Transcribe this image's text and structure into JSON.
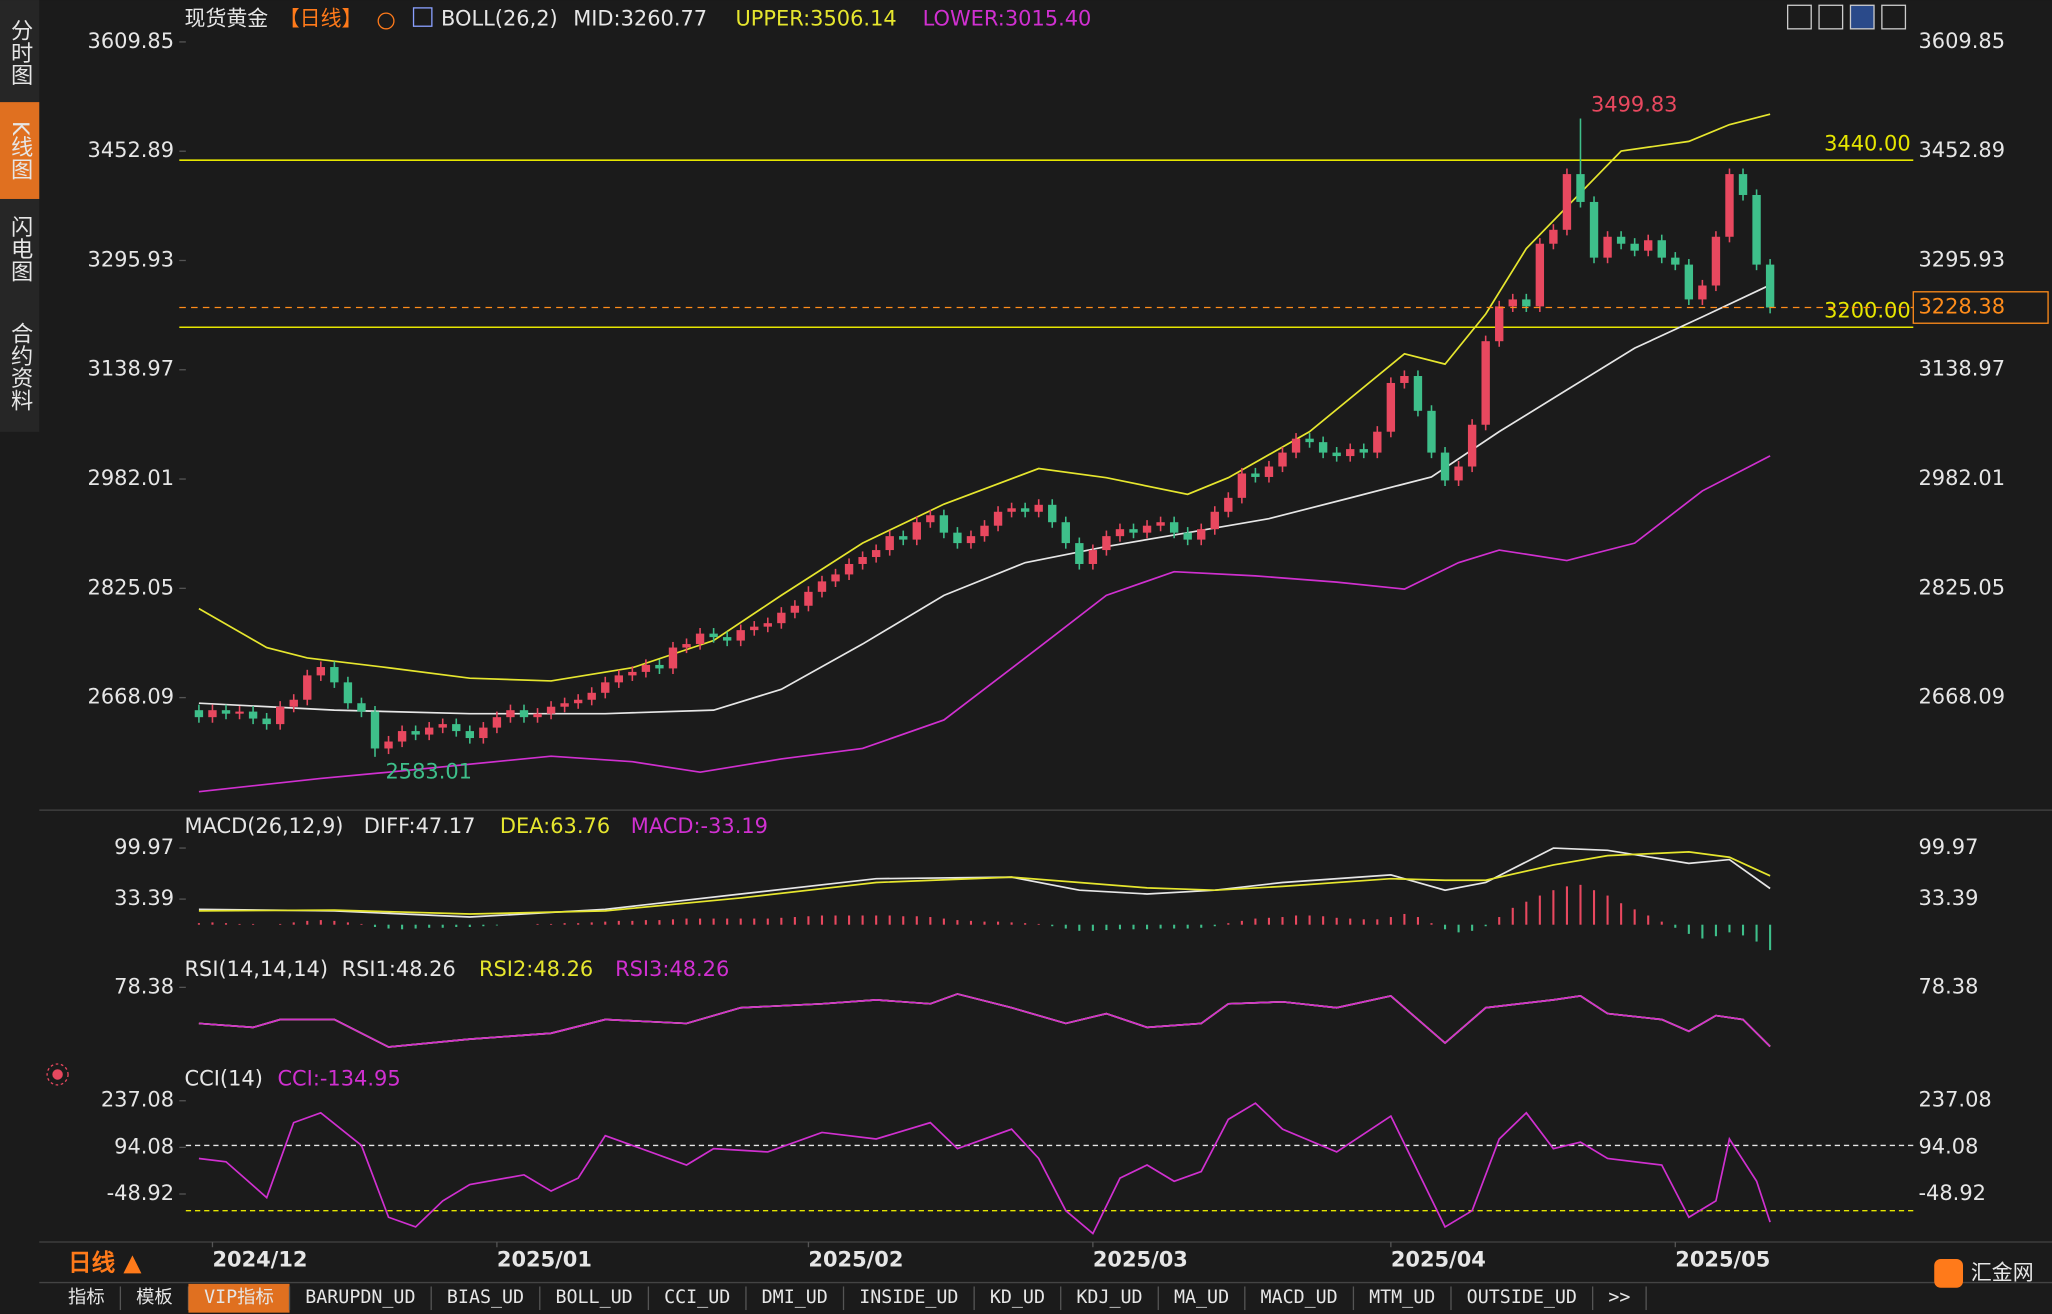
{
  "ui": {
    "sidebar": [
      "分时图",
      "K线图",
      "闪电图",
      "合约资料"
    ],
    "period_button": "日线 ▲",
    "logo": "汇金网",
    "tabs": [
      "指标",
      "模板",
      "VIP指标",
      "BARUPDN_UD",
      "BIAS_UD",
      "BOLL_UD",
      "CCI_UD",
      "DMI_UD",
      "INSIDE_UD",
      "KD_UD",
      "KDJ_UD",
      "MA_UD",
      "MACD_UD",
      "MTM_UD",
      "OUTSIDE_UD",
      ">>"
    ]
  },
  "chart_data": [
    {
      "type": "candlestick",
      "title": "现货黄金",
      "period": "【日线】",
      "indicator": "BOLL(26,2)",
      "up_color": "#e8485f",
      "down_color": "#3ebf8a",
      "open": [
        2650,
        2640,
        2650,
        2645,
        2648,
        2638,
        2630,
        2655,
        2665,
        2700,
        2712,
        2690,
        2660,
        2648,
        2595,
        2605,
        2620,
        2615,
        2625,
        2630,
        2620,
        2610,
        2625,
        2640,
        2650,
        2640,
        2645,
        2655,
        2660,
        2665,
        2675,
        2690,
        2700,
        2705,
        2715,
        2710,
        2740,
        2745,
        2760,
        2755,
        2750,
        2765,
        2770,
        2775,
        2790,
        2800,
        2820,
        2835,
        2845,
        2860,
        2870,
        2880,
        2900,
        2895,
        2920,
        2930,
        2905,
        2890,
        2900,
        2915,
        2935,
        2940,
        2935,
        2945,
        2920,
        2890,
        2860,
        2880,
        2900,
        2910,
        2905,
        2915,
        2920,
        2905,
        2895,
        2910,
        2935,
        2955,
        2990,
        2985,
        3000,
        3020,
        3040,
        3035,
        3020,
        3015,
        3025,
        3020,
        3050,
        3120,
        3130,
        3080,
        3020,
        2980,
        3000,
        3060,
        3180,
        3230,
        3240,
        3230,
        3320,
        3340,
        3420,
        3380,
        3300,
        3330,
        3320,
        3310,
        3325,
        3300,
        3290,
        3240,
        3260,
        3330,
        3420,
        3390,
        3290
      ],
      "high": [
        2658,
        2658,
        2658,
        2656,
        2656,
        2646,
        2663,
        2673,
        2708,
        2720,
        2720,
        2698,
        2668,
        2656,
        2613,
        2628,
        2628,
        2633,
        2638,
        2638,
        2628,
        2633,
        2648,
        2658,
        2658,
        2653,
        2663,
        2668,
        2673,
        2683,
        2698,
        2708,
        2713,
        2723,
        2723,
        2748,
        2753,
        2768,
        2768,
        2763,
        2773,
        2778,
        2783,
        2798,
        2808,
        2828,
        2843,
        2853,
        2868,
        2878,
        2888,
        2908,
        2908,
        2928,
        2938,
        2938,
        2913,
        2908,
        2923,
        2943,
        2948,
        2948,
        2953,
        2953,
        2928,
        2898,
        2888,
        2908,
        2918,
        2918,
        2923,
        2928,
        2928,
        2913,
        2918,
        2943,
        2963,
        2998,
        2998,
        3008,
        3028,
        3048,
        3048,
        3043,
        3028,
        3033,
        3033,
        3058,
        3128,
        3138,
        3138,
        3088,
        3028,
        3008,
        3068,
        3188,
        3238,
        3248,
        3248,
        3328,
        3348,
        3428,
        3499.83,
        3388,
        3338,
        3338,
        3328,
        3333,
        3333,
        3308,
        3298,
        3268,
        3338,
        3428,
        3428,
        3398,
        3298
      ],
      "low": [
        2632,
        2632,
        2637,
        2637,
        2630,
        2622,
        2622,
        2647,
        2657,
        2692,
        2682,
        2652,
        2640,
        2583.01,
        2587,
        2597,
        2607,
        2607,
        2617,
        2612,
        2602,
        2602,
        2617,
        2632,
        2632,
        2632,
        2637,
        2647,
        2652,
        2657,
        2667,
        2682,
        2692,
        2697,
        2702,
        2702,
        2732,
        2737,
        2747,
        2742,
        2742,
        2757,
        2762,
        2767,
        2782,
        2792,
        2812,
        2827,
        2837,
        2852,
        2862,
        2872,
        2887,
        2887,
        2912,
        2897,
        2882,
        2882,
        2892,
        2907,
        2927,
        2927,
        2927,
        2912,
        2882,
        2852,
        2852,
        2872,
        2892,
        2897,
        2897,
        2907,
        2897,
        2887,
        2887,
        2902,
        2927,
        2947,
        2977,
        2977,
        2992,
        3012,
        3027,
        3012,
        3007,
        3007,
        3012,
        3012,
        3042,
        3112,
        3072,
        3012,
        2972,
        2972,
        2992,
        3052,
        3172,
        3222,
        3222,
        3222,
        3312,
        3332,
        3372,
        3292,
        3292,
        3312,
        3302,
        3302,
        3292,
        3282,
        3232,
        3232,
        3252,
        3322,
        3382,
        3282,
        3220
      ],
      "close": [
        2640,
        2650,
        2645,
        2648,
        2638,
        2630,
        2655,
        2665,
        2700,
        2712,
        2690,
        2660,
        2648,
        2595,
        2605,
        2620,
        2615,
        2625,
        2630,
        2620,
        2610,
        2625,
        2640,
        2650,
        2640,
        2645,
        2655,
        2660,
        2665,
        2675,
        2690,
        2700,
        2705,
        2715,
        2710,
        2740,
        2745,
        2760,
        2755,
        2750,
        2765,
        2770,
        2775,
        2790,
        2800,
        2820,
        2835,
        2845,
        2860,
        2870,
        2880,
        2900,
        2895,
        2920,
        2930,
        2905,
        2890,
        2900,
        2915,
        2935,
        2940,
        2935,
        2945,
        2920,
        2890,
        2860,
        2880,
        2900,
        2910,
        2905,
        2915,
        2920,
        2905,
        2895,
        2910,
        2935,
        2955,
        2990,
        2985,
        3000,
        3020,
        3040,
        3035,
        3020,
        3015,
        3025,
        3020,
        3050,
        3120,
        3130,
        3080,
        3020,
        2980,
        3000,
        3060,
        3180,
        3230,
        3240,
        3230,
        3320,
        3340,
        3420,
        3380,
        3300,
        3330,
        3320,
        3310,
        3325,
        3300,
        3290,
        3240,
        3260,
        3330,
        3420,
        3390,
        3290,
        3228.38
      ],
      "series": [
        {
          "name": "MID:3260.77",
          "color": "#e6e6e6",
          "x": [
            0,
            10,
            20,
            30,
            38,
            43,
            49,
            55,
            61,
            67,
            73,
            79,
            85,
            91,
            96,
            101,
            106,
            111,
            116
          ],
          "values": [
            2660,
            2650,
            2645,
            2645,
            2650,
            2680,
            2745,
            2815,
            2862,
            2885,
            2905,
            2925,
            2955,
            2985,
            3050,
            3110,
            3170,
            3215,
            3260.77
          ]
        },
        {
          "name": "UPPER:3506.14",
          "color": "#e6e62e",
          "x": [
            0,
            5,
            8,
            14,
            20,
            26,
            32,
            38,
            43,
            49,
            55,
            62,
            67,
            73,
            76,
            82,
            89,
            92,
            95,
            98,
            105,
            110,
            113,
            116
          ],
          "values": [
            2796,
            2740,
            2725,
            2711,
            2696,
            2692,
            2711,
            2750,
            2815,
            2890,
            2946,
            2997,
            2984,
            2960,
            2984,
            3050,
            3162,
            3147,
            3219,
            3313,
            3453,
            3467,
            3491,
            3506.14
          ]
        },
        {
          "name": "LOWER:3015.40",
          "color": "#d030d0",
          "x": [
            0,
            9,
            14,
            26,
            32,
            37,
            43,
            49,
            55,
            62,
            67,
            72,
            78,
            84,
            89,
            93,
            96,
            101,
            106,
            111,
            116
          ],
          "values": [
            2533,
            2552,
            2561,
            2584,
            2576,
            2561,
            2580,
            2595,
            2636,
            2740,
            2815,
            2849,
            2843,
            2834,
            2824,
            2862,
            2880,
            2865,
            2890,
            2965,
            3015.4
          ]
        }
      ],
      "hlines": [
        {
          "value": 3440,
          "label": "3440.00"
        },
        {
          "value": 3200,
          "label": "3200.00"
        }
      ],
      "hline_color": "#e6e600",
      "last_color": "#ff8c1a",
      "ylim": [
        2514,
        3609.85
      ],
      "yticks": [
        3609.85,
        3452.89,
        3295.93,
        3138.97,
        2982.01,
        2825.05,
        2668.09
      ],
      "xticks": [
        {
          "value": 1,
          "label": "2024/12"
        },
        {
          "value": 22,
          "label": "2025/01"
        },
        {
          "value": 45,
          "label": "2025/02"
        },
        {
          "value": 66,
          "label": "2025/03"
        },
        {
          "value": 88,
          "label": "2025/04"
        },
        {
          "value": 109,
          "label": "2025/05"
        }
      ]
    },
    {
      "type": "macd",
      "title": "MACD(26,12,9)",
      "x": [
        0,
        10,
        20,
        30,
        40,
        50,
        60,
        65,
        70,
        75,
        80,
        88,
        92,
        95,
        100,
        104,
        110,
        113,
        116
      ],
      "series": [
        {
          "name": "DIFF:47.17",
          "color": "#e6e6e6",
          "values": [
            20,
            18,
            10,
            20,
            40,
            60,
            62,
            45,
            40,
            45,
            55,
            65,
            45,
            55,
            100,
            97,
            80,
            85,
            47.17
          ]
        },
        {
          "name": "DEA:63.76",
          "color": "#e6e62e",
          "values": [
            18,
            19,
            14,
            18,
            35,
            55,
            62,
            55,
            48,
            45,
            50,
            60,
            58,
            58,
            78,
            90,
            95,
            88,
            63.76
          ]
        }
      ],
      "histogram": {
        "name": "MACD:-33.19",
        "color": "#d030d0",
        "up_color": "#e8485f",
        "down_color": "#3ebf8a",
        "values": [
          2,
          3,
          2,
          1,
          1,
          0,
          1,
          3,
          5,
          6,
          5,
          3,
          1,
          -3,
          -5,
          -6,
          -5,
          -4,
          -4,
          -3,
          -3,
          -2,
          -1,
          0,
          0,
          1,
          1,
          2,
          2,
          3,
          4,
          5,
          5,
          6,
          6,
          7,
          8,
          8,
          8,
          8,
          8,
          8,
          8,
          9,
          10,
          11,
          12,
          12,
          12,
          12,
          12,
          12,
          11,
          11,
          10,
          8,
          6,
          5,
          4,
          4,
          3,
          2,
          1,
          -2,
          -5,
          -8,
          -8,
          -7,
          -6,
          -6,
          -6,
          -5,
          -5,
          -5,
          -4,
          -2,
          2,
          5,
          8,
          9,
          10,
          12,
          12,
          11,
          9,
          8,
          7,
          7,
          10,
          14,
          10,
          2,
          -6,
          -10,
          -8,
          -2,
          10,
          22,
          30,
          38,
          45,
          50,
          52,
          45,
          38,
          28,
          20,
          12,
          4,
          -4,
          -12,
          -18,
          -15,
          -10,
          -14,
          -22,
          -33.19
        ]
      },
      "ylim": [
        -36.6,
        113.6
      ],
      "yticks": [
        99.97,
        33.39
      ]
    },
    {
      "type": "line",
      "title": "RSI(14,14,14)",
      "x": [
        0,
        4,
        6,
        10,
        14,
        20,
        26,
        30,
        36,
        40,
        46,
        50,
        54,
        56,
        60,
        64,
        67,
        70,
        74,
        76,
        80,
        84,
        88,
        90,
        92,
        95,
        100,
        102,
        104,
        108,
        110,
        112,
        114,
        116
      ],
      "series": [
        {
          "name": "RSI1:48.26",
          "color": "#e6e6e6",
          "values": [
            60,
            58,
            62,
            62,
            48,
            52,
            55,
            62,
            60,
            68,
            70,
            72,
            70,
            75,
            68,
            60,
            65,
            58,
            60,
            70,
            71,
            68,
            74,
            62,
            50,
            68,
            72,
            74,
            65,
            62,
            56,
            64,
            62,
            48.26
          ]
        },
        {
          "name": "RSI2:48.26",
          "color": "#e6e62e",
          "values": [
            60,
            58,
            62,
            62,
            48,
            52,
            55,
            62,
            60,
            68,
            70,
            72,
            70,
            75,
            68,
            60,
            65,
            58,
            60,
            70,
            71,
            68,
            74,
            62,
            50,
            68,
            72,
            74,
            65,
            62,
            56,
            64,
            62,
            48.26
          ]
        },
        {
          "name": "RSI3:48.26",
          "color": "#d030d0",
          "values": [
            60,
            58,
            62,
            62,
            48,
            52,
            55,
            62,
            60,
            68,
            70,
            72,
            70,
            75,
            68,
            60,
            65,
            58,
            60,
            70,
            71,
            68,
            74,
            62,
            50,
            68,
            72,
            74,
            65,
            62,
            56,
            64,
            62,
            48.26
          ]
        }
      ],
      "ylim": [
        40,
        80
      ],
      "yticks": [
        78.38
      ]
    },
    {
      "type": "line",
      "title": "CCI(14)",
      "x": [
        0,
        2,
        5,
        7,
        9,
        12,
        14,
        16,
        18,
        20,
        24,
        26,
        28,
        30,
        32,
        36,
        38,
        42,
        46,
        50,
        54,
        56,
        60,
        62,
        64,
        66,
        68,
        70,
        72,
        74,
        76,
        78,
        80,
        84,
        88,
        92,
        94,
        96,
        98,
        100,
        102,
        104,
        108,
        110,
        112,
        113,
        115,
        116
      ],
      "series": [
        {
          "name": "CCI:-134.95",
          "color": "#d030d0",
          "values": [
            60,
            50,
            -60,
            170,
            200,
            100,
            -120,
            -150,
            -70,
            -20,
            10,
            -40,
            0,
            130,
            100,
            40,
            90,
            80,
            140,
            120,
            170,
            90,
            150,
            60,
            -100,
            -170,
            0,
            40,
            -10,
            20,
            180,
            230,
            150,
            80,
            190,
            -150,
            -100,
            120,
            200,
            90,
            110,
            60,
            40,
            -120,
            -70,
            120,
            -10,
            -134.95
          ]
        }
      ],
      "ref_lines": [
        {
          "value": 100,
          "color": "#e6e6e6"
        },
        {
          "value": -100,
          "color": "#e6e600"
        }
      ],
      "ylim": [
        -180,
        257.5
      ],
      "yticks": [
        237.08,
        94.08,
        -48.92
      ]
    }
  ]
}
